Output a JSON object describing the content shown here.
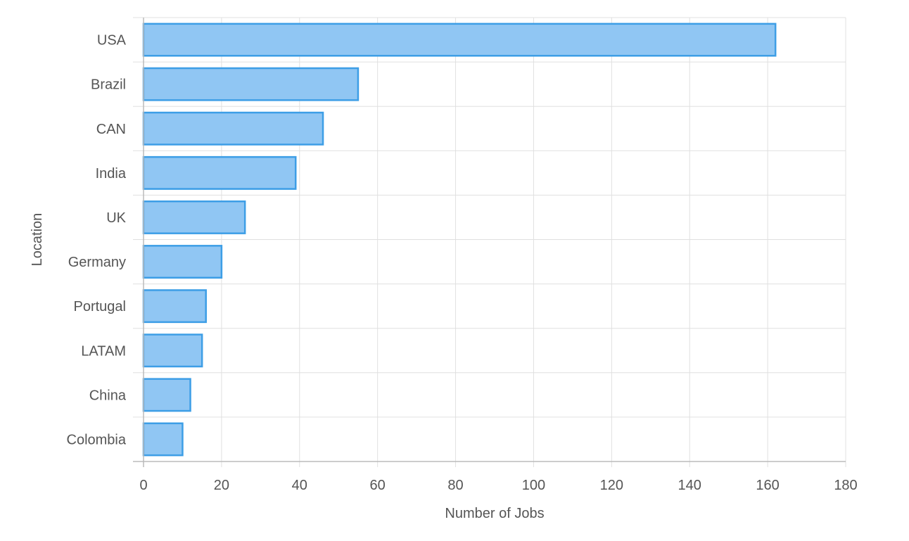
{
  "chart_data": {
    "type": "bar",
    "orientation": "horizontal",
    "title": "",
    "xlabel": "Number of Jobs",
    "ylabel": "Location",
    "xlim": [
      0,
      180
    ],
    "x_ticks": [
      0,
      20,
      40,
      60,
      80,
      100,
      120,
      140,
      160,
      180
    ],
    "categories": [
      "USA",
      "Brazil",
      "CAN",
      "India",
      "UK",
      "Germany",
      "Portugal",
      "LATAM",
      "China",
      "Colombia"
    ],
    "values": [
      162,
      55,
      46,
      39,
      26,
      20,
      16,
      15,
      12,
      10
    ],
    "grid": true,
    "legend": "none",
    "colors": {
      "bar_fill": "#90c6f3",
      "bar_stroke": "#3d9ee6",
      "grid": "#e0e0e0",
      "axis": "#bbbbbb",
      "text": "#555555"
    }
  }
}
